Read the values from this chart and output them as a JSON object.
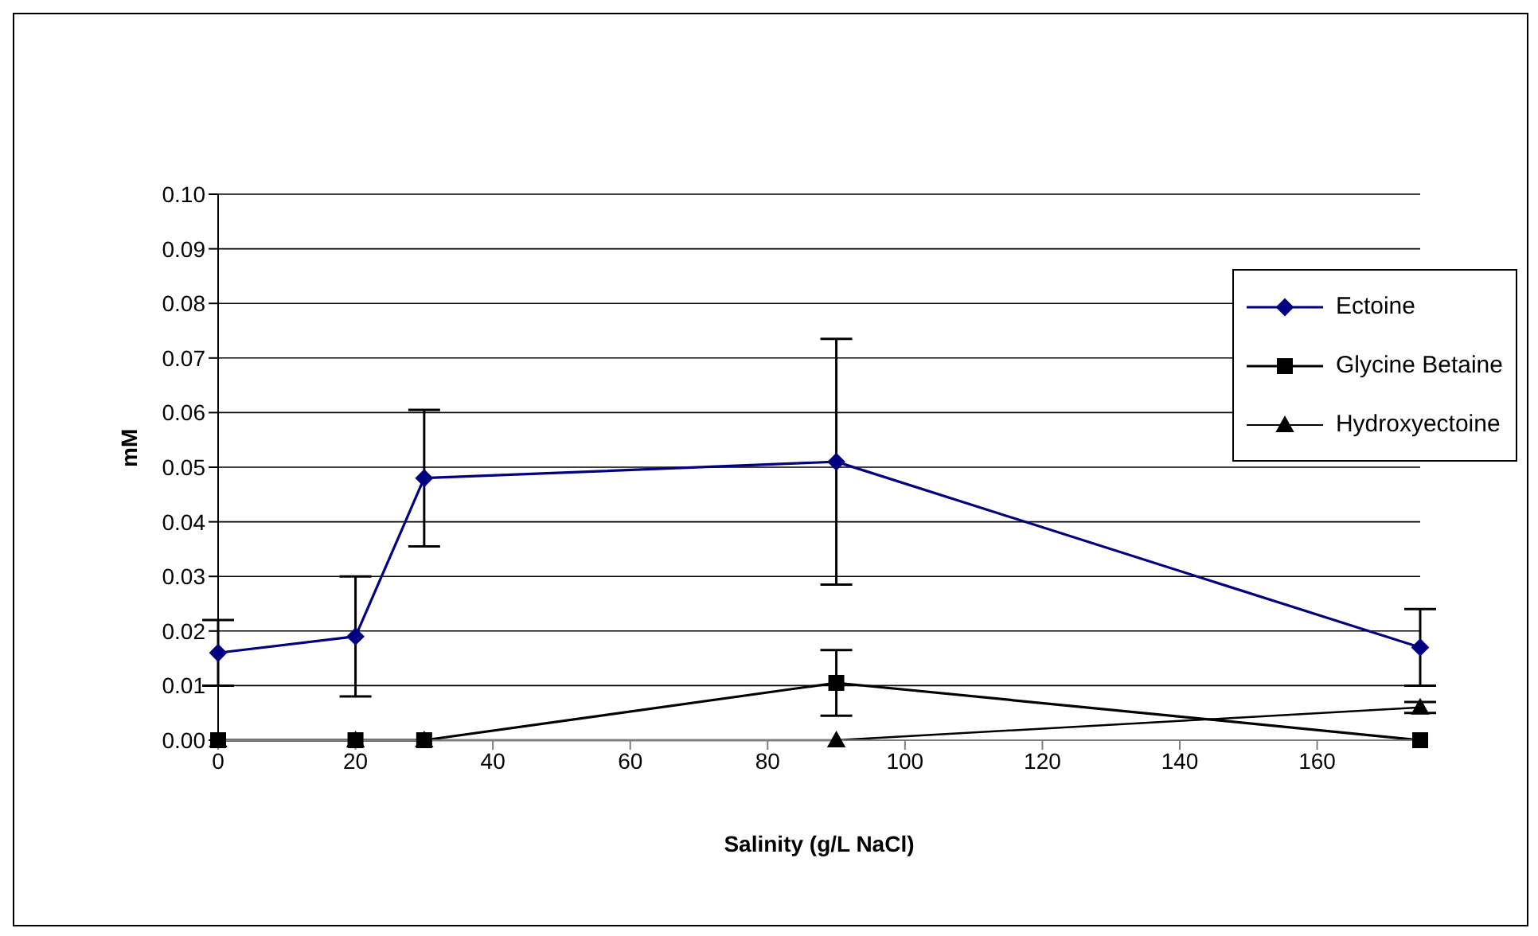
{
  "chart_data": {
    "type": "line",
    "xlabel": "Salinity (g/L NaCl)",
    "ylabel": "mM",
    "xlim": [
      0,
      175
    ],
    "xticks": [
      0,
      20,
      40,
      60,
      80,
      100,
      120,
      140,
      160
    ],
    "ylim": [
      0,
      0.1
    ],
    "yticks": [
      {
        "value": 0,
        "label": "0.00"
      },
      {
        "value": 0.01,
        "label": "0.01"
      },
      {
        "value": 0.02,
        "label": "0.02"
      },
      {
        "value": 0.03,
        "label": "0.03"
      },
      {
        "value": 0.04,
        "label": "0.04"
      },
      {
        "value": 0.05,
        "label": "0.05"
      },
      {
        "value": 0.06,
        "label": "0.06"
      },
      {
        "value": 0.07,
        "label": "0.07"
      },
      {
        "value": 0.08,
        "label": "0.08"
      },
      {
        "value": 0.09,
        "label": "0.09"
      },
      {
        "value": 0.1,
        "label": "0.10"
      }
    ],
    "grid": "y",
    "legend": "top right",
    "x": [
      0,
      20,
      30,
      90,
      175
    ],
    "series": [
      {
        "name": "Ectoine",
        "color": "#000080",
        "marker": "diamond",
        "values": [
          0.016,
          0.019,
          0.048,
          0.051,
          0.017
        ],
        "errors": [
          0.006,
          0.011,
          0.0125,
          0.0225,
          0.007
        ]
      },
      {
        "name": "Glycine Betaine",
        "color": "#000000",
        "marker": "square",
        "values": [
          0,
          0,
          0,
          0.0105,
          0
        ],
        "errors": [
          null,
          null,
          null,
          0.006,
          null
        ]
      },
      {
        "name": "Hydroxyectoine",
        "color": "#000000",
        "marker": "triangle",
        "values": [
          0,
          0,
          0,
          0,
          0.006
        ],
        "errors": [
          null,
          null,
          null,
          null,
          0.001
        ]
      }
    ]
  }
}
